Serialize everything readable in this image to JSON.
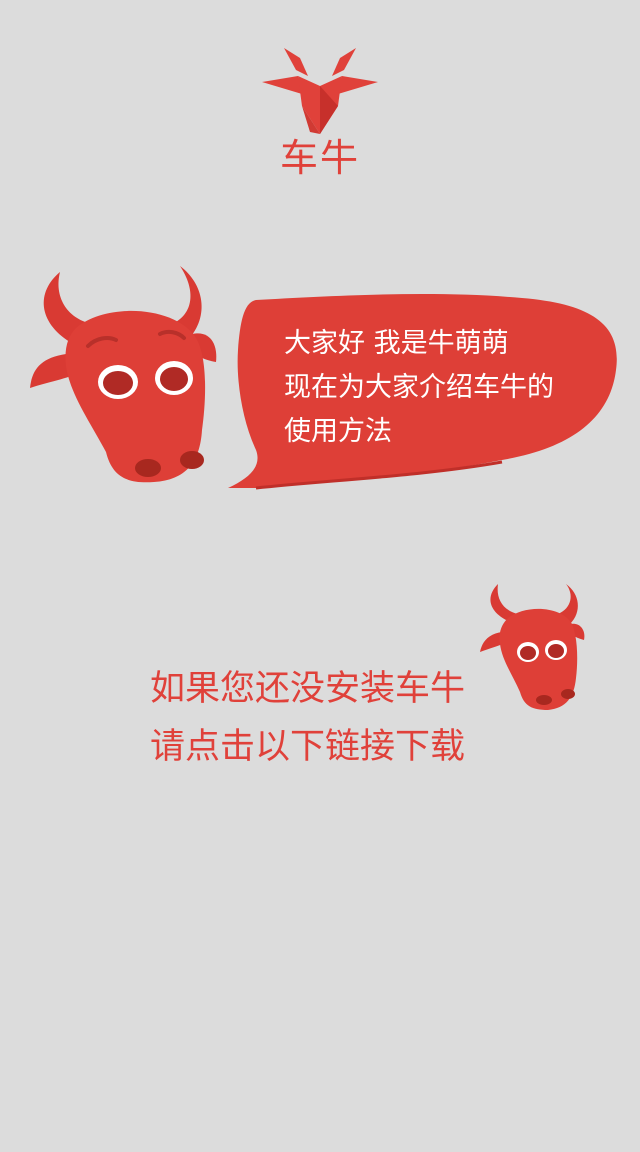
{
  "brand": {
    "name": "车牛"
  },
  "bubble": {
    "line1": "大家好 我是牛萌萌",
    "line2": "现在为大家介绍车牛的",
    "line3": "使用方法"
  },
  "cta": {
    "line1": "如果您还没安装车牛",
    "line2": "请点击以下链接下载"
  },
  "colors": {
    "accent": "#e0413a",
    "accent_dark": "#c7302b",
    "background": "#dcdcdc"
  },
  "icons": {
    "logo": "bull-head-logo-icon",
    "mascot_big": "bull-mascot-icon",
    "mascot_small": "bull-mascot-small-icon"
  }
}
